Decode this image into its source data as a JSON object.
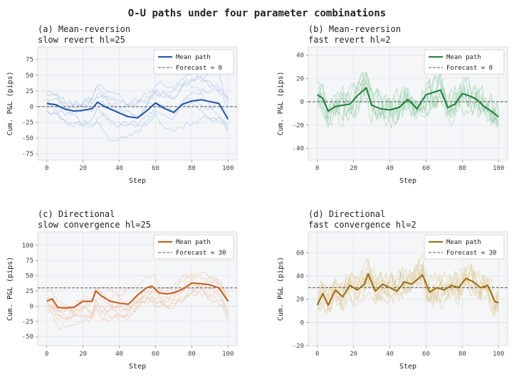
{
  "figure": {
    "title": "O-U paths under four parameter combinations"
  },
  "chart_data": [
    {
      "type": "line",
      "title_line1": "(a) Mean-reversion",
      "title_line2": "slow revert  hl=25",
      "xlabel": "Step",
      "ylabel": "Cum. P&L (pips)",
      "xlim": [
        -5,
        105
      ],
      "ylim": [
        -85,
        95
      ],
      "xticks": [
        0,
        20,
        40,
        60,
        80,
        100
      ],
      "yticks": [
        -75,
        -50,
        -25,
        0,
        25,
        50,
        75
      ],
      "grid": true,
      "legend_position": "upper right",
      "legend": [
        "Mean path",
        "Forecast = 0"
      ],
      "color": "#1f55a8",
      "faint_color": "#aac4ea",
      "forecast": 0,
      "mean_path": {
        "x": [
          0,
          5,
          10,
          15,
          20,
          25,
          28,
          32,
          36,
          40,
          45,
          50,
          55,
          60,
          65,
          70,
          75,
          80,
          85,
          90,
          95,
          100
        ],
        "y": [
          5,
          3,
          -4,
          -7,
          -6,
          -3,
          7,
          0,
          -5,
          -10,
          -16,
          -18,
          -7,
          6,
          -3,
          -9,
          4,
          9,
          11,
          8,
          5,
          -20
        ]
      },
      "n_sample_paths": 8
    },
    {
      "type": "line",
      "title_line1": "(b) Mean-reversion",
      "title_line2": "fast revert  hl=2",
      "xlabel": "Step",
      "ylabel": "Cum. P&L (pips)",
      "xlim": [
        -5,
        105
      ],
      "ylim": [
        -50,
        47
      ],
      "xticks": [
        0,
        20,
        40,
        60,
        80,
        100
      ],
      "yticks": [
        -40,
        -20,
        0,
        20,
        40
      ],
      "grid": true,
      "legend_position": "upper right",
      "legend": [
        "Mean path",
        "Forecast = 0"
      ],
      "color": "#1e7d35",
      "faint_color": "#9fd1ad",
      "forecast": 0,
      "mean_path": {
        "x": [
          0,
          3,
          6,
          10,
          14,
          18,
          22,
          27,
          30,
          35,
          40,
          45,
          50,
          55,
          60,
          64,
          68,
          72,
          76,
          80,
          84,
          88,
          92,
          96,
          100
        ],
        "y": [
          6,
          3,
          -8,
          -4,
          -3,
          -2,
          5,
          12,
          -3,
          -6,
          -7,
          -5,
          2,
          -6,
          6,
          8,
          10,
          -5,
          -2,
          7,
          5,
          2,
          -4,
          -8,
          -13
        ]
      },
      "n_sample_paths": 8
    },
    {
      "type": "line",
      "title_line1": "(c) Directional",
      "title_line2": "slow convergence  hl=25",
      "xlabel": "Step",
      "ylabel": "Cum. P&L (pips)",
      "xlim": [
        -5,
        105
      ],
      "ylim": [
        -65,
        122
      ],
      "xticks": [
        0,
        20,
        40,
        60,
        80,
        100
      ],
      "yticks": [
        -50,
        -25,
        0,
        25,
        50,
        75,
        100
      ],
      "grid": true,
      "legend_position": "upper right",
      "legend": [
        "Mean path",
        "Forecast = 30"
      ],
      "color": "#c85a1c",
      "faint_color": "#f2c3a4",
      "forecast": 30,
      "mean_path": {
        "x": [
          0,
          3,
          6,
          10,
          15,
          20,
          25,
          27,
          30,
          35,
          40,
          45,
          50,
          55,
          58,
          62,
          66,
          70,
          75,
          80,
          85,
          90,
          95,
          100
        ],
        "y": [
          8,
          12,
          -2,
          -3,
          -2,
          8,
          8,
          25,
          17,
          8,
          5,
          3,
          18,
          30,
          33,
          22,
          20,
          22,
          28,
          38,
          37,
          35,
          30,
          8
        ]
      },
      "n_sample_paths": 8
    },
    {
      "type": "line",
      "title_line1": "(d) Directional",
      "title_line2": "fast convergence  hl=2",
      "xlabel": "Step",
      "ylabel": "Cum. P&L (pips)",
      "xlim": [
        -5,
        105
      ],
      "ylim": [
        -20,
        78
      ],
      "xticks": [
        0,
        20,
        40,
        60,
        80,
        100
      ],
      "yticks": [
        -20,
        0,
        20,
        40,
        60
      ],
      "grid": true,
      "legend_position": "upper right",
      "legend": [
        "Mean path",
        "Forecast = 30"
      ],
      "color": "#9c6a0e",
      "faint_color": "#e0cc9c",
      "forecast": 30,
      "mean_path": {
        "x": [
          0,
          3,
          6,
          10,
          14,
          18,
          22,
          26,
          28,
          32,
          36,
          40,
          44,
          48,
          52,
          56,
          58,
          62,
          66,
          70,
          74,
          78,
          82,
          86,
          90,
          94,
          98,
          100
        ],
        "y": [
          15,
          25,
          15,
          28,
          22,
          32,
          28,
          33,
          42,
          27,
          33,
          30,
          27,
          35,
          33,
          38,
          41,
          26,
          30,
          28,
          32,
          30,
          38,
          35,
          30,
          32,
          18,
          17
        ]
      },
      "n_sample_paths": 8
    }
  ]
}
